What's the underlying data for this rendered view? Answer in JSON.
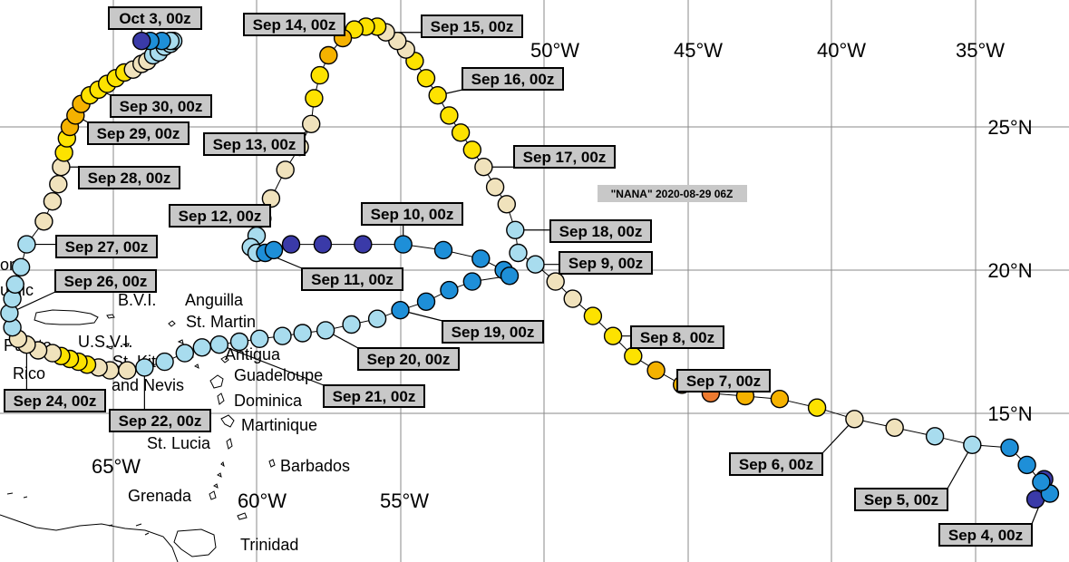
{
  "storm_label": "\"NANA\" 2020-08-29 06Z",
  "longitude_labels": [
    "65°W",
    "60°W",
    "55°W",
    "50°W",
    "45°W",
    "40°W",
    "35°W"
  ],
  "latitude_labels": [
    "25°N",
    "20°N",
    "15°N"
  ],
  "places": [
    "Anguilla",
    "St. Martin",
    "B.V.I.",
    "U.S.V.I.",
    "St. Kitts",
    "and Nevis",
    "Antigua",
    "Guadeloupe",
    "Dominica",
    "Martinique",
    "St. Lucia",
    "Barbados",
    "Grenada",
    "Trinidad",
    "Puerto",
    "Rico",
    "om",
    "ublic"
  ],
  "dates": [
    "Sep 4, 00z",
    "Sep 5, 00z",
    "Sep 6, 00z",
    "Sep 7, 00z",
    "Sep 8, 00z",
    "Sep 9, 00z",
    "Sep 10, 00z",
    "Sep 11, 00z",
    "Sep 12, 00z",
    "Sep 13, 00z",
    "Sep 14, 00z",
    "Sep 15, 00z",
    "Sep 16, 00z",
    "Sep 17, 00z",
    "Sep 18, 00z",
    "Sep 19, 00z",
    "Sep 20, 00z",
    "Sep 21, 00z",
    "Sep 22, 00z",
    "Sep 24, 00z",
    "Sep 26, 00z",
    "Sep 27, 00z",
    "Sep 28, 00z",
    "Sep 29, 00z",
    "Sep 30, 00z",
    "Oct 3, 00z"
  ],
  "intensity_colors": {
    "very_weak": "#3a3aa8",
    "weak": "#1e8fd8",
    "moderate": "#a8dcee",
    "neutral": "#f0e2bc",
    "strong": "#fde200",
    "stronger": "#f5b200",
    "strongest": "#ee7b30"
  },
  "track_points": [
    {
      "lon": -32.6,
      "lat": 12.7,
      "level": "very_weak"
    },
    {
      "lon": -32.9,
      "lat": 12.0,
      "level": "very_weak"
    },
    {
      "lon": -32.4,
      "lat": 12.2,
      "level": "weak"
    },
    {
      "lon": -32.7,
      "lat": 12.6,
      "level": "weak"
    },
    {
      "lon": -33.2,
      "lat": 13.2,
      "level": "weak"
    },
    {
      "lon": -33.8,
      "lat": 13.8,
      "level": "weak"
    },
    {
      "lon": -35.1,
      "lat": 13.9,
      "level": "moderate"
    },
    {
      "lon": -36.4,
      "lat": 14.2,
      "level": "moderate"
    },
    {
      "lon": -37.8,
      "lat": 14.5,
      "level": "neutral"
    },
    {
      "lon": -39.2,
      "lat": 14.8,
      "level": "neutral"
    },
    {
      "lon": -40.5,
      "lat": 15.2,
      "level": "strong"
    },
    {
      "lon": -41.8,
      "lat": 15.5,
      "level": "stronger"
    },
    {
      "lon": -43.0,
      "lat": 15.6,
      "level": "stronger"
    },
    {
      "lon": -44.2,
      "lat": 15.7,
      "level": "strongest"
    },
    {
      "lon": -45.2,
      "lat": 16.0,
      "level": "stronger"
    },
    {
      "lon": -46.1,
      "lat": 16.5,
      "level": "stronger"
    },
    {
      "lon": -46.9,
      "lat": 17.0,
      "level": "strong"
    },
    {
      "lon": -47.6,
      "lat": 17.7,
      "level": "strong"
    },
    {
      "lon": -48.3,
      "lat": 18.4,
      "level": "strong"
    },
    {
      "lon": -49.0,
      "lat": 19.0,
      "level": "neutral"
    },
    {
      "lon": -49.6,
      "lat": 19.6,
      "level": "neutral"
    },
    {
      "lon": -50.3,
      "lat": 20.2,
      "level": "moderate"
    },
    {
      "lon": -50.9,
      "lat": 20.6,
      "level": "moderate"
    },
    {
      "lon": -51.0,
      "lat": 21.4,
      "level": "moderate"
    },
    {
      "lon": -51.3,
      "lat": 22.3,
      "level": "neutral"
    },
    {
      "lon": -51.7,
      "lat": 22.9,
      "level": "neutral"
    },
    {
      "lon": -52.1,
      "lat": 23.6,
      "level": "neutral"
    },
    {
      "lon": -52.5,
      "lat": 24.2,
      "level": "strong"
    },
    {
      "lon": -52.9,
      "lat": 24.8,
      "level": "strong"
    },
    {
      "lon": -53.3,
      "lat": 25.4,
      "level": "strong"
    },
    {
      "lon": -53.7,
      "lat": 26.1,
      "level": "strong"
    },
    {
      "lon": -54.1,
      "lat": 26.7,
      "level": "strong"
    },
    {
      "lon": -54.5,
      "lat": 27.3,
      "level": "strong"
    },
    {
      "lon": -54.8,
      "lat": 27.7,
      "level": "neutral"
    },
    {
      "lon": -55.1,
      "lat": 28.0,
      "level": "neutral"
    },
    {
      "lon": -55.5,
      "lat": 28.3,
      "level": "neutral"
    },
    {
      "lon": -55.8,
      "lat": 28.5,
      "level": "strong"
    },
    {
      "lon": -56.2,
      "lat": 28.5,
      "level": "strong"
    },
    {
      "lon": -56.6,
      "lat": 28.4,
      "level": "strong"
    },
    {
      "lon": -57.0,
      "lat": 28.1,
      "level": "stronger"
    },
    {
      "lon": -57.5,
      "lat": 27.5,
      "level": "stronger"
    },
    {
      "lon": -57.8,
      "lat": 26.8,
      "level": "strong"
    },
    {
      "lon": -58.0,
      "lat": 26.0,
      "level": "strong"
    },
    {
      "lon": -58.1,
      "lat": 25.1,
      "level": "neutral"
    },
    {
      "lon": -58.5,
      "lat": 24.3,
      "level": "neutral"
    },
    {
      "lon": -59.0,
      "lat": 23.5,
      "level": "neutral"
    },
    {
      "lon": -59.5,
      "lat": 22.5,
      "level": "neutral"
    },
    {
      "lon": -59.8,
      "lat": 21.8,
      "level": "moderate"
    },
    {
      "lon": -60.0,
      "lat": 21.2,
      "level": "moderate"
    },
    {
      "lon": -60.2,
      "lat": 20.8,
      "level": "moderate"
    },
    {
      "lon": -60.0,
      "lat": 20.6,
      "level": "moderate"
    },
    {
      "lon": -59.7,
      "lat": 20.6,
      "level": "weak"
    },
    {
      "lon": -59.4,
      "lat": 20.7,
      "level": "weak"
    },
    {
      "lon": -58.8,
      "lat": 20.9,
      "level": "very_weak"
    },
    {
      "lon": -57.7,
      "lat": 20.9,
      "level": "very_weak"
    },
    {
      "lon": -56.3,
      "lat": 20.9,
      "level": "very_weak"
    },
    {
      "lon": -54.9,
      "lat": 20.9,
      "level": "weak"
    },
    {
      "lon": -53.5,
      "lat": 20.7,
      "level": "weak"
    },
    {
      "lon": -52.2,
      "lat": 20.4,
      "level": "weak"
    },
    {
      "lon": -51.4,
      "lat": 20.0,
      "level": "weak"
    },
    {
      "lon": -51.2,
      "lat": 19.8,
      "level": "weak"
    },
    {
      "lon": -52.5,
      "lat": 19.6,
      "level": "weak"
    },
    {
      "lon": -53.3,
      "lat": 19.3,
      "level": "weak"
    },
    {
      "lon": -54.1,
      "lat": 18.9,
      "level": "weak"
    },
    {
      "lon": -55.0,
      "lat": 18.6,
      "level": "weak"
    },
    {
      "lon": -55.8,
      "lat": 18.3,
      "level": "moderate"
    },
    {
      "lon": -56.7,
      "lat": 18.1,
      "level": "moderate"
    },
    {
      "lon": -57.6,
      "lat": 17.9,
      "level": "moderate"
    },
    {
      "lon": -58.4,
      "lat": 17.8,
      "level": "moderate"
    },
    {
      "lon": -59.1,
      "lat": 17.7,
      "level": "moderate"
    },
    {
      "lon": -59.9,
      "lat": 17.6,
      "level": "moderate"
    },
    {
      "lon": -60.6,
      "lat": 17.5,
      "level": "moderate"
    },
    {
      "lon": -61.3,
      "lat": 17.4,
      "level": "moderate"
    },
    {
      "lon": -61.9,
      "lat": 17.3,
      "level": "moderate"
    },
    {
      "lon": -62.5,
      "lat": 17.1,
      "level": "moderate"
    },
    {
      "lon": -63.2,
      "lat": 16.8,
      "level": "moderate"
    },
    {
      "lon": -63.9,
      "lat": 16.6,
      "level": "moderate"
    },
    {
      "lon": -64.5,
      "lat": 16.5,
      "level": "neutral"
    },
    {
      "lon": -65.1,
      "lat": 16.5,
      "level": "neutral"
    },
    {
      "lon": -65.5,
      "lat": 16.6,
      "level": "neutral"
    },
    {
      "lon": -65.9,
      "lat": 16.7,
      "level": "strong"
    },
    {
      "lon": -66.2,
      "lat": 16.8,
      "level": "strong"
    },
    {
      "lon": -66.5,
      "lat": 16.9,
      "level": "strong"
    },
    {
      "lon": -66.8,
      "lat": 17.0,
      "level": "strong"
    },
    {
      "lon": -67.1,
      "lat": 17.1,
      "level": "neutral"
    },
    {
      "lon": -67.6,
      "lat": 17.2,
      "level": "neutral"
    },
    {
      "lon": -68.0,
      "lat": 17.4,
      "level": "neutral"
    },
    {
      "lon": -68.3,
      "lat": 17.6,
      "level": "neutral"
    },
    {
      "lon": -68.5,
      "lat": 18.0,
      "level": "moderate"
    },
    {
      "lon": -68.6,
      "lat": 18.5,
      "level": "moderate"
    },
    {
      "lon": -68.5,
      "lat": 19.0,
      "level": "moderate"
    },
    {
      "lon": -68.4,
      "lat": 19.5,
      "level": "moderate"
    },
    {
      "lon": -68.2,
      "lat": 20.1,
      "level": "moderate"
    },
    {
      "lon": -68.0,
      "lat": 20.9,
      "level": "moderate"
    },
    {
      "lon": -67.4,
      "lat": 21.7,
      "level": "neutral"
    },
    {
      "lon": -67.1,
      "lat": 22.4,
      "level": "neutral"
    },
    {
      "lon": -66.9,
      "lat": 23.0,
      "level": "neutral"
    },
    {
      "lon": -66.8,
      "lat": 23.6,
      "level": "neutral"
    },
    {
      "lon": -66.7,
      "lat": 24.1,
      "level": "strong"
    },
    {
      "lon": -66.6,
      "lat": 24.6,
      "level": "strong"
    },
    {
      "lon": -66.5,
      "lat": 25.0,
      "level": "stronger"
    },
    {
      "lon": -66.3,
      "lat": 25.4,
      "level": "stronger"
    },
    {
      "lon": -66.1,
      "lat": 25.8,
      "level": "stronger"
    },
    {
      "lon": -65.8,
      "lat": 26.1,
      "level": "strong"
    },
    {
      "lon": -65.5,
      "lat": 26.3,
      "level": "strong"
    },
    {
      "lon": -65.2,
      "lat": 26.5,
      "level": "strong"
    },
    {
      "lon": -64.9,
      "lat": 26.7,
      "level": "strong"
    },
    {
      "lon": -64.6,
      "lat": 26.9,
      "level": "strong"
    },
    {
      "lon": -64.3,
      "lat": 27.0,
      "level": "neutral"
    },
    {
      "lon": -64.0,
      "lat": 27.2,
      "level": "neutral"
    },
    {
      "lon": -63.8,
      "lat": 27.3,
      "level": "neutral"
    },
    {
      "lon": -63.6,
      "lat": 27.5,
      "level": "moderate"
    },
    {
      "lon": -63.4,
      "lat": 27.6,
      "level": "moderate"
    },
    {
      "lon": -63.2,
      "lat": 27.8,
      "level": "moderate"
    },
    {
      "lon": -63.0,
      "lat": 27.9,
      "level": "moderate"
    },
    {
      "lon": -62.9,
      "lat": 28.0,
      "level": "moderate"
    },
    {
      "lon": -63.0,
      "lat": 28.0,
      "level": "moderate"
    },
    {
      "lon": -63.3,
      "lat": 28.0,
      "level": "weak"
    },
    {
      "lon": -63.7,
      "lat": 28.0,
      "level": "weak"
    },
    {
      "lon": -64.0,
      "lat": 28.0,
      "level": "very_weak"
    }
  ],
  "date_labels": [
    {
      "text": "Sep 4, 00z",
      "lon": -32.6,
      "lat": 12.2
    },
    {
      "text": "Sep 5, 00z",
      "lon": -35.1,
      "lat": 13.9
    },
    {
      "text": "Sep 6, 00z",
      "lon": -39.2,
      "lat": 14.8
    },
    {
      "text": "Sep 7, 00z",
      "lon": -44.2,
      "lat": 15.7
    },
    {
      "text": "Sep 8, 00z",
      "lon": -47.6,
      "lat": 17.7
    },
    {
      "text": "Sep 9, 00z",
      "lon": -50.3,
      "lat": 20.2
    },
    {
      "text": "Sep 10, 00z",
      "lon": -54.9,
      "lat": 20.9
    },
    {
      "text": "Sep 11, 00z",
      "lon": -59.7,
      "lat": 20.6
    },
    {
      "text": "Sep 12, 00z",
      "lon": -60.0,
      "lat": 21.2
    },
    {
      "text": "Sep 13, 00z",
      "lon": -58.1,
      "lat": 25.1
    },
    {
      "text": "Sep 14, 00z",
      "lon": -56.6,
      "lat": 28.4
    },
    {
      "text": "Sep 15, 00z",
      "lon": -55.5,
      "lat": 28.3
    },
    {
      "text": "Sep 16, 00z",
      "lon": -53.7,
      "lat": 26.1
    },
    {
      "text": "Sep 17, 00z",
      "lon": -52.1,
      "lat": 23.6
    },
    {
      "text": "Sep 18, 00z",
      "lon": -51.0,
      "lat": 21.4
    },
    {
      "text": "Sep 19, 00z",
      "lon": -55.0,
      "lat": 18.6
    },
    {
      "text": "Sep 20, 00z",
      "lon": -57.6,
      "lat": 17.9
    },
    {
      "text": "Sep 21, 00z",
      "lon": -61.3,
      "lat": 17.4
    },
    {
      "text": "Sep 22, 00z",
      "lon": -63.9,
      "lat": 16.6
    },
    {
      "text": "Sep 24, 00z",
      "lon": -68.0,
      "lat": 17.4
    },
    {
      "text": "Sep 26, 00z",
      "lon": -68.6,
      "lat": 18.5
    },
    {
      "text": "Sep 27, 00z",
      "lon": -68.0,
      "lat": 20.9
    },
    {
      "text": "Sep 28, 00z",
      "lon": -66.8,
      "lat": 23.6
    },
    {
      "text": "Sep 29, 00z",
      "lon": -66.3,
      "lat": 25.4
    },
    {
      "text": "Sep 30, 00z",
      "lon": -65.5,
      "lat": 26.3
    },
    {
      "text": "Oct 3, 00z",
      "lon": -64.0,
      "lat": 28.0
    }
  ]
}
